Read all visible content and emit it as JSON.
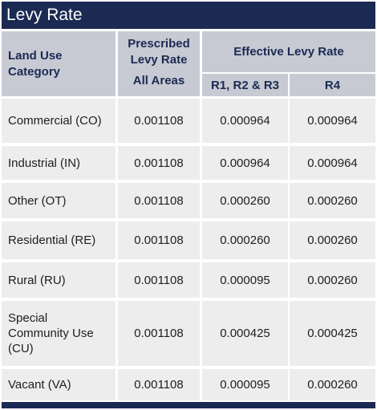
{
  "title": "Levy Rate",
  "header": {
    "land_use": "Land Use Category",
    "prescribed": "Prescribed Levy Rate",
    "all_areas": "All Areas",
    "effective": "Effective Levy Rate",
    "r123": "R1, R2 & R3",
    "r4": "R4"
  },
  "rows": [
    {
      "category": "Commercial (CO)",
      "prescribed": "0.001108",
      "r123": "0.000964",
      "r4": "0.000964"
    },
    {
      "category": "Industrial (IN)",
      "prescribed": "0.001108",
      "r123": "0.000964",
      "r4": "0.000964"
    },
    {
      "category": "Other (OT)",
      "prescribed": "0.001108",
      "r123": "0.000260",
      "r4": "0.000260"
    },
    {
      "category": "Residential (RE)",
      "prescribed": "0.001108",
      "r123": "0.000260",
      "r4": "0.000260"
    },
    {
      "category": "Rural (RU)",
      "prescribed": "0.001108",
      "r123": "0.000095",
      "r4": "0.000260"
    },
    {
      "category": "Special Community Use (CU)",
      "prescribed": "0.001108",
      "r123": "0.000425",
      "r4": "0.000425"
    },
    {
      "category": "Vacant (VA)",
      "prescribed": "0.001108",
      "r123": "0.000095",
      "r4": "0.000260"
    }
  ],
  "colors": {
    "navy": "#1b2a52",
    "header_bg": "#c7cad3",
    "cell_bg": "#ededed"
  }
}
